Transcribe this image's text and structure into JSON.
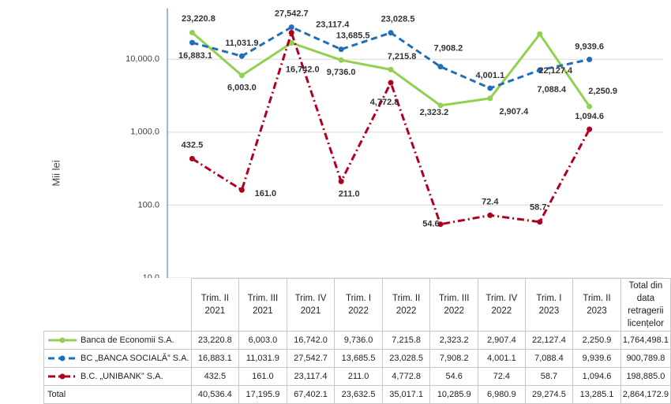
{
  "chart_data": {
    "type": "line",
    "y_axis_label": "Mii lei",
    "log_scale": true,
    "grid": true,
    "ylim": [
      10,
      50000
    ],
    "yticks": [
      {
        "value": 10,
        "label": "10.0"
      },
      {
        "value": 100,
        "label": "100.0"
      },
      {
        "value": 1000,
        "label": "1,000.0"
      },
      {
        "value": 10000,
        "label": "10,000.0"
      }
    ],
    "categories": [
      "Trim. II 2021",
      "Trim. III 2021",
      "Trim. IV 2021",
      "Trim. I 2022",
      "Trim. II 2022",
      "Trim. III 2022",
      "Trim. IV 2022",
      "Trim. I 2023",
      "Trim. II 2023"
    ],
    "total_column_header": "Total din data retragerii licențelor",
    "series": [
      {
        "name": "Banca de Economii S.A.",
        "color": "#92d050",
        "line_style": "solid",
        "values": [
          23220.8,
          6003.0,
          16742.0,
          9736.0,
          7215.8,
          2323.2,
          2907.4,
          22127.4,
          2250.9
        ],
        "value_labels": [
          "23,220.8",
          "6,003.0",
          "16,742.0",
          "9,736.0",
          "7,215.8",
          "2,323.2",
          "2,907.4",
          "22,127.4",
          "2,250.9"
        ],
        "total_label": "1,764,498.1"
      },
      {
        "name": "BC „BANCA SOCIALĂ” S.A.",
        "color": "#1f6fb8",
        "line_style": "dash",
        "values": [
          16883.1,
          11031.9,
          27542.7,
          13685.5,
          23028.5,
          7908.2,
          4001.1,
          7088.4,
          9939.6
        ],
        "value_labels": [
          "16,883.1",
          "11,031.9",
          "27,542.7",
          "13,685.5",
          "23,028.5",
          "7,908.2",
          "4,001.1",
          "7,088.4",
          "9,939.6"
        ],
        "total_label": "900,789.8"
      },
      {
        "name": "B.C. „UNIBANK” S.A.",
        "color": "#b00020",
        "line_style": "dash-dot",
        "values": [
          432.5,
          161.0,
          23117.4,
          211.0,
          4772.8,
          54.6,
          72.4,
          58.7,
          1094.6
        ],
        "value_labels": [
          "432.5",
          "161.0",
          "23,117.4",
          "211.0",
          "4,772.8",
          "54.6",
          "72.4",
          "58.7",
          "1,094.6"
        ],
        "total_label": "198,885.0"
      }
    ],
    "total_row": {
      "label": "Total",
      "value_labels": [
        "40,536.4",
        "17,195.9",
        "67,402.1",
        "23,632.5",
        "35,017.1",
        "10,285.9",
        "6,980.9",
        "29,274.5",
        "13,285.1"
      ],
      "total_label": "2,864,172.9"
    }
  }
}
